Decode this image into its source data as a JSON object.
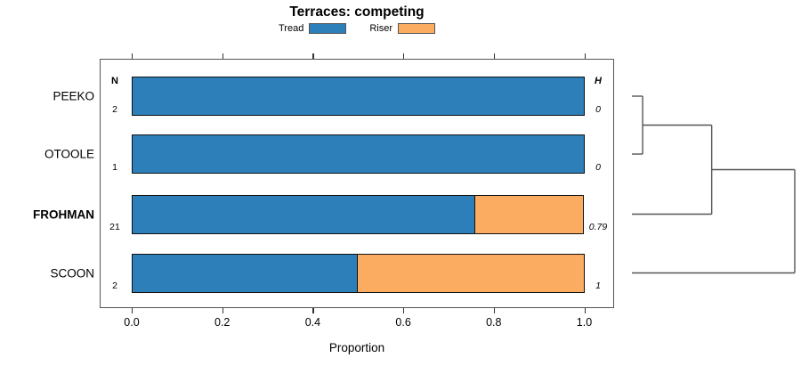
{
  "title": "Terraces: competing",
  "legend": [
    {
      "label": "Tread",
      "color": "#2C7FB9"
    },
    {
      "label": "Riser",
      "color": "#FBAC60"
    }
  ],
  "columns": {
    "n_header": "N",
    "h_header": "H"
  },
  "axis": {
    "xlabel": "Proportion",
    "tick_labels": [
      "0.0",
      "0.2",
      "0.4",
      "0.6",
      "0.8",
      "1.0"
    ],
    "tick_values": [
      0,
      0.2,
      0.4,
      0.6,
      0.8,
      1.0
    ]
  },
  "chart_data": {
    "type": "bar",
    "orientation": "horizontal",
    "stacked": true,
    "title": "Terraces: competing",
    "xlabel": "Proportion",
    "xlim": [
      0,
      1
    ],
    "grid": false,
    "legend_position": "top",
    "categories": [
      "PEEKO",
      "OTOOLE",
      "FROHMAN",
      "SCOON"
    ],
    "bold_categories": [
      "FROHMAN"
    ],
    "series": [
      {
        "name": "Tread",
        "color": "#2C7FB9",
        "values": [
          1.0,
          1.0,
          0.76,
          0.5
        ]
      },
      {
        "name": "Riser",
        "color": "#FBAC60",
        "values": [
          0.0,
          0.0,
          0.24,
          0.5
        ]
      }
    ],
    "n_values": [
      "2",
      "1",
      "21",
      "2"
    ],
    "h_values": [
      "0",
      "0",
      "0.79",
      "1"
    ],
    "dendrogram": {
      "line_color": "#555",
      "merges": [
        {
          "a": [
            "leaf",
            0
          ],
          "b": [
            "leaf",
            1
          ],
          "height": 0.066
        },
        {
          "a": [
            "merge",
            0
          ],
          "b": [
            "leaf",
            2
          ],
          "height": 0.49
        },
        {
          "a": [
            "merge",
            1
          ],
          "b": [
            "leaf",
            3
          ],
          "height": 1.0
        }
      ]
    }
  }
}
